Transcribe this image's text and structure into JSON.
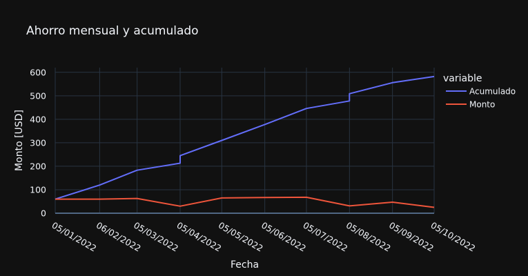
{
  "colors": {
    "background": "#111111",
    "grid": "#283442",
    "text": "#f2f5fa",
    "acumulado": "#636efa",
    "monto": "#ef553b"
  },
  "chart_data": {
    "type": "line",
    "title": "Ahorro mensual y acumulado",
    "xlabel": "Fecha",
    "ylabel": "Monto [USD]",
    "ylim": [
      0,
      620
    ],
    "yticks": [
      0,
      100,
      200,
      300,
      400,
      500,
      600
    ],
    "xtick_labels": [
      "05/01/2022",
      "06/02/2022",
      "05/03/2022",
      "05/04/2022",
      "05/05/2022",
      "05/06/2022",
      "05/07/2022",
      "05/08/2022",
      "05/09/2022",
      "05/10/2022"
    ],
    "grid": true,
    "legend": {
      "title": "variable",
      "placement": "right"
    },
    "series": [
      {
        "name": "Acumulado",
        "color": "#636efa",
        "points": [
          [
            "2022-01-05",
            60
          ],
          [
            "2022-02-06",
            120
          ],
          [
            "2022-03-05",
            183
          ],
          [
            "2022-04-05",
            213
          ],
          [
            "2022-04-05",
            245
          ],
          [
            "2022-05-05",
            310
          ],
          [
            "2022-06-05",
            378
          ],
          [
            "2022-07-05",
            446
          ],
          [
            "2022-08-05",
            478
          ],
          [
            "2022-08-05",
            509
          ],
          [
            "2022-09-05",
            556
          ],
          [
            "2022-10-05",
            582
          ]
        ]
      },
      {
        "name": "Monto",
        "color": "#ef553b",
        "points": [
          [
            "2022-01-05",
            60
          ],
          [
            "2022-02-06",
            60
          ],
          [
            "2022-03-05",
            63
          ],
          [
            "2022-04-05",
            30
          ],
          [
            "2022-05-05",
            65
          ],
          [
            "2022-06-05",
            67
          ],
          [
            "2022-07-05",
            68
          ],
          [
            "2022-08-05",
            31
          ],
          [
            "2022-09-05",
            47
          ],
          [
            "2022-10-05",
            25
          ]
        ]
      }
    ]
  }
}
